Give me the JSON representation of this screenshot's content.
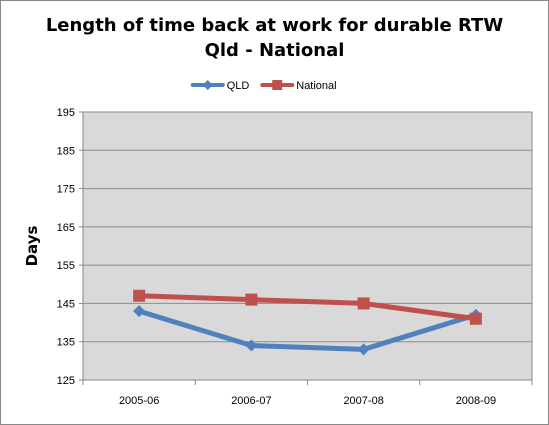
{
  "chart_data": {
    "type": "line",
    "title": [
      "Length of time back at work for durable RTW",
      "Qld - National"
    ],
    "categories": [
      "2005-06",
      "2006-07",
      "2007-08",
      "2008-09"
    ],
    "series": [
      {
        "name": "QLD",
        "values": [
          143,
          134,
          133,
          142
        ],
        "color": "#4f81bd",
        "marker": "diamond"
      },
      {
        "name": "National",
        "values": [
          147,
          146,
          145,
          141
        ],
        "color": "#c0504d",
        "marker": "square"
      }
    ],
    "xlabel": "",
    "ylabel": "Days",
    "ylim": [
      125,
      195
    ],
    "yticks": [
      125,
      135,
      145,
      155,
      165,
      175,
      185,
      195
    ],
    "grid": true,
    "legend": "top",
    "plot_background": "#d9d9d9"
  }
}
